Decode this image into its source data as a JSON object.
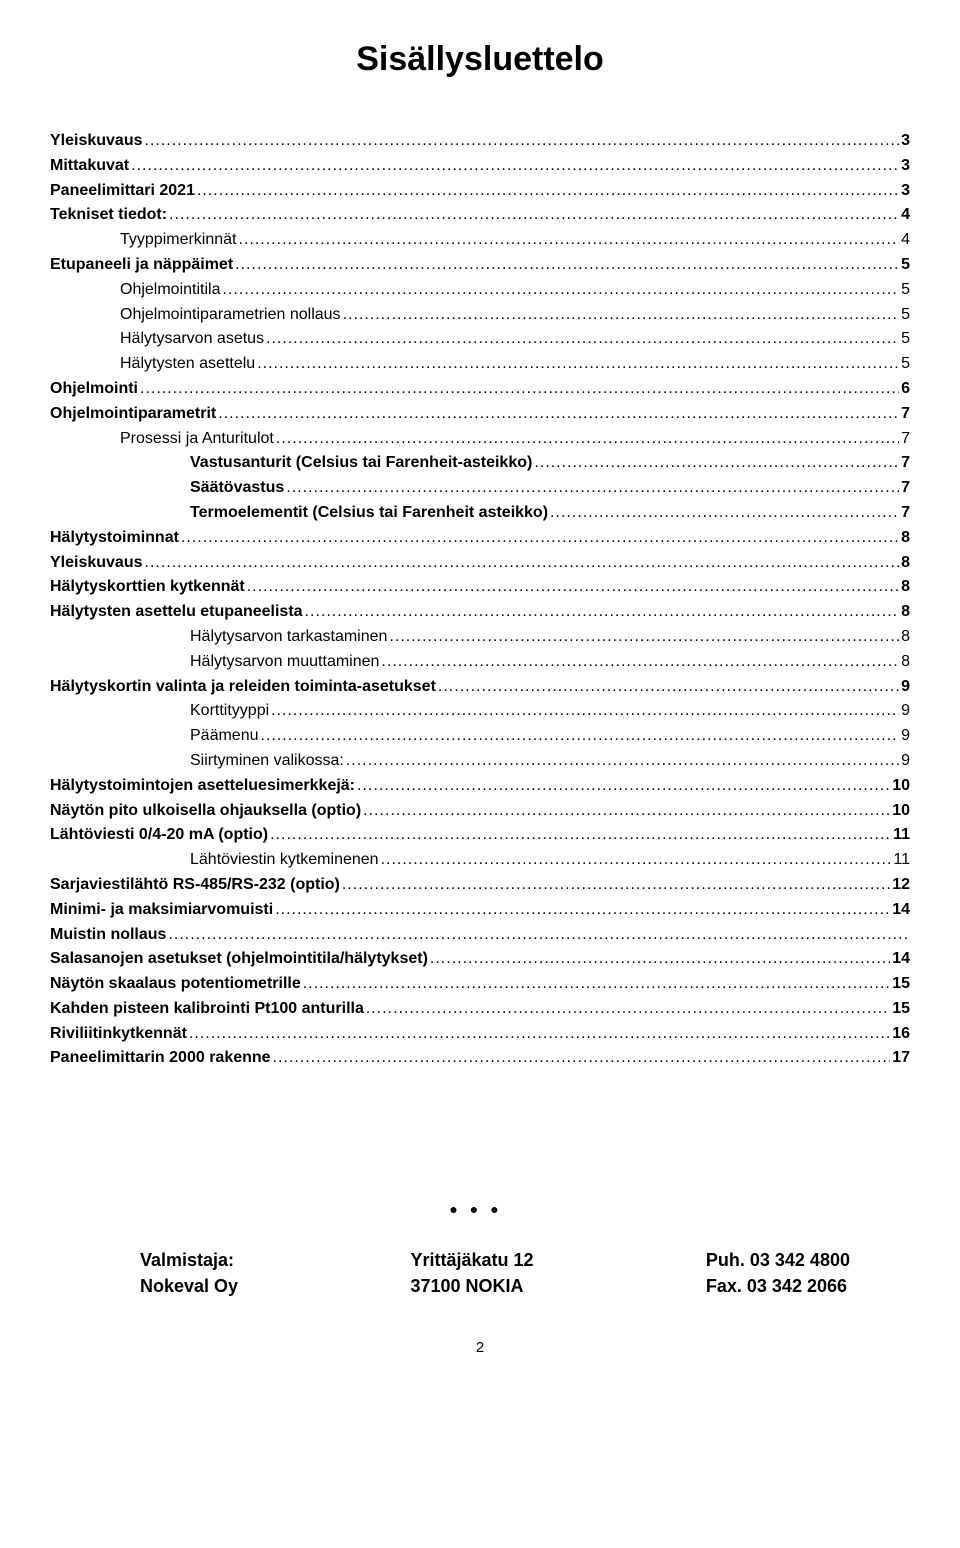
{
  "title": "Sisällysluettelo",
  "toc": [
    {
      "label": "Yleiskuvaus",
      "page": "3",
      "level": 0
    },
    {
      "label": "Mittakuvat",
      "page": "3",
      "level": 0
    },
    {
      "label": "Paneelimittari 2021",
      "page": "3",
      "level": 0
    },
    {
      "label": "Tekniset tiedot:",
      "page": "4",
      "level": 0
    },
    {
      "label": "Tyyppimerkinnät",
      "page": "4",
      "level": 1
    },
    {
      "label": "Etupaneeli ja näppäimet",
      "page": "5",
      "level": 0
    },
    {
      "label": "Ohjelmointitila",
      "page": "5",
      "level": 1
    },
    {
      "label": "Ohjelmointiparametrien nollaus",
      "page": "5",
      "level": 1
    },
    {
      "label": "Hälytysarvon asetus",
      "page": "5",
      "level": 1
    },
    {
      "label": "Hälytysten asettelu",
      "page": "5",
      "level": 1
    },
    {
      "label": "Ohjelmointi",
      "page": "6",
      "level": 0
    },
    {
      "label": "Ohjelmointiparametrit",
      "page": "7",
      "level": 0
    },
    {
      "label": "Prosessi ja Anturitulot",
      "page": "7",
      "level": 1
    },
    {
      "label": "Vastusanturit (Celsius tai Farenheit-asteikko)",
      "page": "7",
      "level": "2b"
    },
    {
      "label": "Säätövastus",
      "page": "7",
      "level": "2b"
    },
    {
      "label": "Termoelementit (Celsius tai Farenheit asteikko)",
      "page": "7",
      "level": "2b"
    },
    {
      "label": "Hälytystoiminnat",
      "page": "8",
      "level": 0
    },
    {
      "label": "Yleiskuvaus",
      "page": "8",
      "level": 0
    },
    {
      "label": "Hälytyskorttien kytkennät",
      "page": "8",
      "level": 0
    },
    {
      "label": "Hälytysten asettelu etupaneelista",
      "page": "8",
      "level": 0
    },
    {
      "label": "Hälytysarvon tarkastaminen",
      "page": "8",
      "level": 2
    },
    {
      "label": "Hälytysarvon muuttaminen",
      "page": "8",
      "level": 2
    },
    {
      "label": "Hälytyskortin valinta ja releiden toiminta-asetukset",
      "page": "9",
      "level": 0
    },
    {
      "label": "Korttityyppi",
      "page": "9",
      "level": 2
    },
    {
      "label": "Päämenu",
      "page": "9",
      "level": 2
    },
    {
      "label": "Siirtyminen valikossa:",
      "page": "9",
      "level": 2
    },
    {
      "label": "Hälytystoimintojen asetteluesimerkkejä:",
      "page": "10",
      "level": 0
    },
    {
      "label": "Näytön pito ulkoisella ohjauksella  (optio)",
      "page": "10",
      "level": 0
    },
    {
      "label": "Lähtöviesti   0/4-20 mA (optio)",
      "page": "11",
      "level": 0
    },
    {
      "label": "Lähtöviestin kytkeminenen",
      "page": "11",
      "level": 2
    },
    {
      "label": "Sarjaviestilähtö RS-485/RS-232 (optio)",
      "page": "12",
      "level": 0
    },
    {
      "label": "Minimi- ja maksimiarvomuisti",
      "page": "14",
      "level": 0
    },
    {
      "label": "Muistin nollaus",
      "page": "",
      "level": 0
    },
    {
      "label": "Salasanojen asetukset (ohjelmointitila/hälytykset)",
      "page": "14",
      "level": 0
    },
    {
      "label": "Näytön skaalaus potentiometrille",
      "page": "15",
      "level": 0
    },
    {
      "label": "Kahden pisteen kalibrointi Pt100 anturilla",
      "page": "15",
      "level": 0
    },
    {
      "label": "Riviliitinkytkennät",
      "page": "16",
      "level": 0
    },
    {
      "label": "Paneelimittarin 2000 rakenne",
      "page": "17",
      "level": 0
    }
  ],
  "separator_dots": "●●●",
  "footer": {
    "left": {
      "line1": "Valmistaja:",
      "line2": "Nokeval Oy"
    },
    "mid": {
      "line1": "Yrittäjäkatu 12",
      "line2": "37100 NOKIA"
    },
    "right": {
      "line1": "Puh. 03 342 4800",
      "line2": "Fax. 03 342 2066"
    }
  },
  "page_number": "2"
}
